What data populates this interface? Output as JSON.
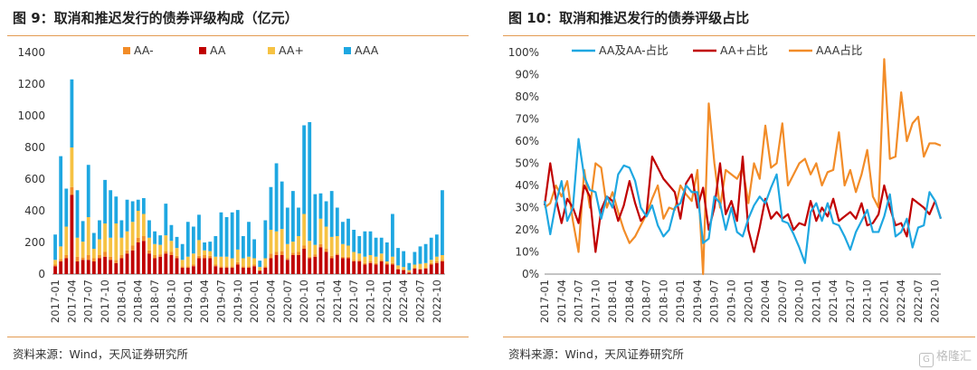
{
  "left": {
    "title": "图 9：取消和推迟发行的债券评级构成（亿元）",
    "source": "资料来源：Wind，天风证券研究所"
  },
  "right": {
    "title": "图 10：取消和推迟发行的债券评级占比",
    "source": "资料来源：Wind，天风证券研究所"
  },
  "watermark": {
    "icon": "G",
    "text": "格隆汇"
  },
  "colors": {
    "aa_minus": "#f28c28",
    "aa": "#c00000",
    "aa_plus": "#f6c243",
    "aaa": "#1ea7e1",
    "rule": "#e39b52"
  },
  "chart_data": [
    {
      "type": "bar",
      "stacked": true,
      "ylim": [
        0,
        1400
      ],
      "yticks": [
        0,
        200,
        400,
        600,
        800,
        1000,
        1200,
        1400
      ],
      "legend_position": "top",
      "xtick_labels": [
        "2017-01",
        "2017-04",
        "2017-07",
        "2017-10",
        "2018-01",
        "2018-04",
        "2018-07",
        "2018-10",
        "2019-01",
        "2019-04",
        "2019-07",
        "2019-10",
        "2020-01",
        "2020-04",
        "2020-07",
        "2020-10",
        "2021-01",
        "2021-04",
        "2021-07",
        "2021-10",
        "2022-01",
        "2022-04",
        "2022-07",
        "2022-10"
      ],
      "categories": [
        "2017-01",
        "2017-02",
        "2017-03",
        "2017-04",
        "2017-05",
        "2017-06",
        "2017-07",
        "2017-08",
        "2017-09",
        "2017-10",
        "2017-11",
        "2017-12",
        "2018-01",
        "2018-02",
        "2018-03",
        "2018-04",
        "2018-05",
        "2018-06",
        "2018-07",
        "2018-08",
        "2018-09",
        "2018-10",
        "2018-11",
        "2018-12",
        "2019-01",
        "2019-02",
        "2019-03",
        "2019-04",
        "2019-05",
        "2019-06",
        "2019-07",
        "2019-08",
        "2019-09",
        "2019-10",
        "2019-11",
        "2019-12",
        "2020-01",
        "2020-02",
        "2020-03",
        "2020-04",
        "2020-05",
        "2020-06",
        "2020-07",
        "2020-08",
        "2020-09",
        "2020-10",
        "2020-11",
        "2020-12",
        "2021-01",
        "2021-02",
        "2021-03",
        "2021-04",
        "2021-05",
        "2021-06",
        "2021-07",
        "2021-08",
        "2021-09",
        "2021-10",
        "2021-11",
        "2021-12",
        "2022-01",
        "2022-02",
        "2022-03",
        "2022-04",
        "2022-05",
        "2022-06",
        "2022-07",
        "2022-08",
        "2022-09",
        "2022-10",
        "2022-11"
      ],
      "series": [
        {
          "name": "AA-",
          "color": "#f28c28",
          "values": [
            10,
            15,
            20,
            50,
            30,
            15,
            30,
            20,
            20,
            30,
            20,
            20,
            20,
            20,
            30,
            30,
            30,
            20,
            20,
            15,
            15,
            20,
            15,
            10,
            10,
            10,
            15,
            20,
            15,
            10,
            10,
            10,
            10,
            15,
            10,
            10,
            10,
            5,
            10,
            30,
            20,
            25,
            10,
            15,
            20,
            20,
            10,
            15,
            20,
            20,
            15,
            10,
            10,
            10,
            10,
            10,
            10,
            10,
            10,
            10,
            10,
            10,
            5,
            5,
            5,
            5,
            5,
            5,
            10,
            10,
            10
          ]
        },
        {
          "name": "AA",
          "color": "#c00000",
          "values": [
            50,
            80,
            100,
            500,
            80,
            90,
            90,
            80,
            100,
            110,
            90,
            70,
            100,
            130,
            150,
            200,
            210,
            130,
            100,
            110,
            130,
            120,
            100,
            40,
            40,
            50,
            100,
            100,
            100,
            50,
            40,
            40,
            40,
            60,
            40,
            40,
            50,
            20,
            40,
            100,
            120,
            120,
            90,
            120,
            120,
            160,
            100,
            110,
            170,
            140,
            100,
            120,
            100,
            100,
            80,
            80,
            60,
            70,
            60,
            80,
            60,
            60,
            30,
            25,
            10,
            35,
            30,
            35,
            60,
            70,
            80
          ]
        },
        {
          "name": "AA+",
          "color": "#f6c243",
          "values": [
            30,
            80,
            180,
            250,
            120,
            100,
            240,
            60,
            100,
            180,
            120,
            230,
            110,
            120,
            150,
            170,
            140,
            80,
            70,
            60,
            100,
            70,
            50,
            40,
            60,
            70,
            100,
            30,
            30,
            50,
            60,
            60,
            50,
            80,
            50,
            60,
            40,
            20,
            50,
            150,
            130,
            140,
            90,
            70,
            100,
            200,
            100,
            60,
            160,
            140,
            120,
            110,
            80,
            70,
            50,
            40,
            40,
            40,
            40,
            40,
            10,
            40,
            20,
            15,
            10,
            20,
            30,
            30,
            20,
            30,
            30
          ]
        },
        {
          "name": "AAA",
          "color": "#1ea7e1",
          "values": [
            160,
            570,
            240,
            430,
            300,
            130,
            330,
            100,
            120,
            275,
            300,
            170,
            110,
            200,
            130,
            70,
            100,
            110,
            80,
            60,
            200,
            100,
            70,
            100,
            220,
            170,
            160,
            50,
            60,
            130,
            280,
            250,
            290,
            250,
            140,
            220,
            120,
            40,
            240,
            270,
            430,
            300,
            230,
            320,
            180,
            560,
            750,
            320,
            160,
            160,
            290,
            180,
            140,
            170,
            140,
            110,
            160,
            150,
            120,
            100,
            120,
            270,
            110,
            100,
            45,
            80,
            110,
            120,
            140,
            140,
            410
          ]
        }
      ]
    },
    {
      "type": "line",
      "ylim": [
        0,
        100
      ],
      "yticks": [
        "0%",
        "10%",
        "20%",
        "30%",
        "40%",
        "50%",
        "60%",
        "70%",
        "80%",
        "90%",
        "100%"
      ],
      "legend_position": "top",
      "xtick_labels": [
        "2017-01",
        "2017-04",
        "2017-07",
        "2017-10",
        "2018-01",
        "2018-04",
        "2018-07",
        "2018-10",
        "2019-01",
        "2019-04",
        "2019-07",
        "2019-10",
        "2020-01",
        "2020-04",
        "2020-07",
        "2020-10",
        "2021-01",
        "2021-04",
        "2021-07",
        "2021-10",
        "2022-01",
        "2022-04",
        "2022-07",
        "2022-10"
      ],
      "series": [
        {
          "name": "AA及AA-占比",
          "color": "#1ea7e1",
          "values": [
            33,
            18,
            32,
            42,
            24,
            30,
            61,
            44,
            38,
            37,
            25,
            35,
            30,
            45,
            49,
            48,
            42,
            30,
            26,
            31,
            22,
            17,
            20,
            30,
            32,
            40,
            37,
            37,
            14,
            16,
            35,
            32,
            20,
            30,
            19,
            17,
            25,
            31,
            35,
            32,
            39,
            45,
            24,
            23,
            18,
            12,
            5,
            28,
            32,
            24,
            32,
            23,
            22,
            17,
            11,
            19,
            24,
            29,
            19,
            19,
            26,
            36,
            17,
            19,
            25,
            12,
            21,
            22,
            37,
            33,
            25
          ]
        },
        {
          "name": "AA+占比",
          "color": "#c00000",
          "values": [
            31,
            50,
            34,
            23,
            34,
            30,
            23,
            40,
            35,
            10,
            29,
            35,
            33,
            24,
            31,
            42,
            32,
            24,
            27,
            53,
            48,
            43,
            40,
            37,
            25,
            41,
            45,
            30,
            39,
            20,
            30,
            50,
            27,
            33,
            24,
            53,
            20,
            10,
            21,
            34,
            25,
            28,
            25,
            27,
            20,
            23,
            22,
            33,
            24,
            30,
            26,
            34,
            24,
            26,
            28,
            25,
            32,
            22,
            23,
            27,
            40,
            30,
            22,
            23,
            17,
            34,
            32,
            30,
            27,
            33,
            25
          ]
        },
        {
          "name": "AAA占比",
          "color": "#f28c28",
          "values": [
            30,
            32,
            40,
            35,
            42,
            24,
            10,
            47,
            30,
            50,
            48,
            30,
            37,
            28,
            20,
            14,
            17,
            22,
            27,
            34,
            40,
            25,
            30,
            29,
            40,
            36,
            33,
            47,
            0,
            77,
            50,
            30,
            47,
            45,
            43,
            48,
            32,
            50,
            43,
            67,
            48,
            50,
            68,
            40,
            45,
            50,
            52,
            45,
            50,
            40,
            46,
            47,
            64,
            40,
            47,
            37,
            45,
            56,
            35,
            30,
            97,
            52,
            53,
            82,
            60,
            68,
            71,
            53,
            59,
            59,
            58
          ]
        }
      ]
    }
  ]
}
